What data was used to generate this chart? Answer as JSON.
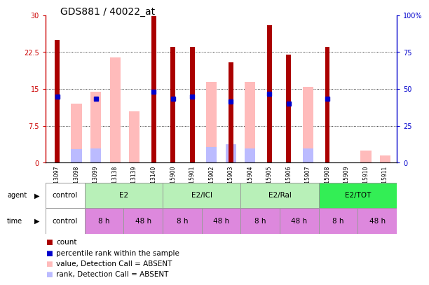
{
  "title": "GDS881 / 40022_at",
  "samples": [
    "GSM13097",
    "GSM13098",
    "GSM13099",
    "GSM13138",
    "GSM13139",
    "GSM13140",
    "GSM15900",
    "GSM15901",
    "GSM15902",
    "GSM15903",
    "GSM15904",
    "GSM15905",
    "GSM15906",
    "GSM15907",
    "GSM15908",
    "GSM15909",
    "GSM15910",
    "GSM15911"
  ],
  "count_values": [
    25.0,
    null,
    null,
    null,
    null,
    29.8,
    23.5,
    23.5,
    null,
    20.5,
    null,
    28.0,
    22.0,
    null,
    23.5,
    null,
    null,
    null
  ],
  "percentile_values": [
    13.5,
    null,
    13.0,
    null,
    null,
    14.5,
    13.0,
    13.5,
    null,
    12.5,
    null,
    14.0,
    12.0,
    null,
    13.0,
    null,
    null,
    null
  ],
  "absent_count_values": [
    null,
    12.0,
    14.5,
    21.5,
    10.5,
    null,
    null,
    null,
    16.5,
    null,
    16.5,
    null,
    null,
    15.5,
    null,
    null,
    2.5,
    1.5
  ],
  "absent_rank_values": [
    null,
    9.0,
    9.5,
    null,
    null,
    null,
    null,
    null,
    10.5,
    12.5,
    9.5,
    null,
    null,
    9.5,
    null,
    null,
    null,
    null
  ],
  "ylim_left": [
    0,
    30
  ],
  "ylim_right": [
    0,
    100
  ],
  "yticks_left": [
    0,
    7.5,
    15,
    22.5,
    30
  ],
  "yticks_right": [
    0,
    25,
    50,
    75,
    100
  ],
  "ytick_labels_left": [
    "0",
    "7.5",
    "15",
    "22.5",
    "30"
  ],
  "ytick_labels_right": [
    "0",
    "25",
    "50",
    "75",
    "100%"
  ],
  "bar_width": 0.55,
  "count_color": "#aa0000",
  "percentile_color": "#0000cc",
  "absent_count_color": "#ffbbbb",
  "absent_rank_color": "#bbbbff",
  "grid_color": "#000000",
  "bg_color": "#ffffff",
  "axis_color_left": "#cc0000",
  "axis_color_right": "#0000cc",
  "title_fontsize": 10,
  "tick_fontsize": 7,
  "label_fontsize": 7.5,
  "legend_fontsize": 7.5,
  "agent_groups": [
    {
      "label": "control",
      "start": 0,
      "end": 2,
      "color": "#ffffff"
    },
    {
      "label": "E2",
      "start": 2,
      "end": 6,
      "color": "#b8f0b8"
    },
    {
      "label": "E2/ICI",
      "start": 6,
      "end": 10,
      "color": "#b8f0b8"
    },
    {
      "label": "E2/Ral",
      "start": 10,
      "end": 14,
      "color": "#b8f0b8"
    },
    {
      "label": "E2/TOT",
      "start": 14,
      "end": 18,
      "color": "#33ee55"
    }
  ],
  "time_groups": [
    {
      "label": "control",
      "start": 0,
      "end": 2,
      "color": "#ffffff"
    },
    {
      "label": "8 h",
      "start": 2,
      "end": 4,
      "color": "#dd88dd"
    },
    {
      "label": "48 h",
      "start": 4,
      "end": 6,
      "color": "#dd88dd"
    },
    {
      "label": "8 h",
      "start": 6,
      "end": 8,
      "color": "#dd88dd"
    },
    {
      "label": "48 h",
      "start": 8,
      "end": 10,
      "color": "#dd88dd"
    },
    {
      "label": "8 h",
      "start": 10,
      "end": 12,
      "color": "#dd88dd"
    },
    {
      "label": "48 h",
      "start": 12,
      "end": 14,
      "color": "#dd88dd"
    },
    {
      "label": "8 h",
      "start": 14,
      "end": 16,
      "color": "#dd88dd"
    },
    {
      "label": "48 h",
      "start": 16,
      "end": 18,
      "color": "#dd88dd"
    }
  ]
}
